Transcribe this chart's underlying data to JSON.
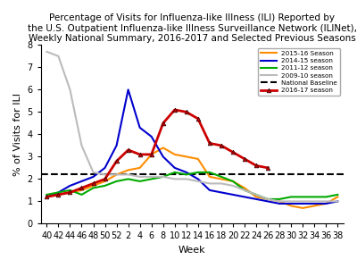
{
  "title_lines": [
    "Percentage of Visits for Influenza-like Illness (ILI) Reported by",
    "the U.S. Outpatient Influenza-like Illness Surveillance Network (ILINet),",
    "Weekly National Summary, 2016-2017 and Selected Previous Seasons"
  ],
  "xlabel": "Week",
  "ylabel": "% of Visits for ILI",
  "ylim": [
    0,
    8
  ],
  "baseline": 2.2,
  "x_tick_labels": [
    "40",
    "42",
    "44",
    "46",
    "48",
    "50",
    "52",
    "2",
    "4",
    "6",
    "8",
    "10",
    "12",
    "14",
    "16",
    "18",
    "20",
    "22",
    "24",
    "26",
    "28",
    "30",
    "32",
    "34",
    "36",
    "38"
  ],
  "legend_entries": [
    "2015-16 Season",
    "2014-15 season",
    "2011-12 season",
    "2009-10 season",
    "National Baseline",
    "2016-17 season"
  ],
  "seasons": {
    "2015_16": {
      "color": "#FF8C00",
      "lw": 1.5,
      "marker": null,
      "values": [
        1.2,
        1.3,
        1.4,
        1.5,
        1.7,
        1.9,
        2.2,
        2.4,
        2.5,
        3.1,
        3.4,
        3.1,
        3.0,
        2.9,
        2.1,
        2.0,
        1.9,
        1.6,
        1.2,
        1.1,
        1.0,
        0.8,
        0.7,
        0.8,
        0.9,
        1.2
      ]
    },
    "2014_15": {
      "color": "#0000CD",
      "lw": 1.5,
      "marker": null,
      "values": [
        1.2,
        1.4,
        1.7,
        1.9,
        2.1,
        2.5,
        3.5,
        6.0,
        4.3,
        3.9,
        3.0,
        2.5,
        2.3,
        2.0,
        1.5,
        1.4,
        1.3,
        1.2,
        1.1,
        1.0,
        0.9,
        0.9,
        0.9,
        0.9,
        0.9,
        1.0
      ]
    },
    "2011_12": {
      "color": "#00AA00",
      "lw": 1.5,
      "marker": null,
      "values": [
        1.3,
        1.4,
        1.5,
        1.3,
        1.6,
        1.7,
        1.9,
        2.0,
        1.9,
        2.0,
        2.1,
        2.3,
        2.2,
        2.3,
        2.3,
        2.1,
        1.9,
        1.5,
        1.3,
        1.1,
        1.1,
        1.2,
        1.2,
        1.2,
        1.2,
        1.3
      ]
    },
    "2009_10": {
      "color": "#BBBBBB",
      "lw": 1.5,
      "marker": null,
      "values": [
        7.7,
        7.5,
        6.0,
        3.5,
        2.3,
        2.2,
        2.2,
        2.2,
        2.1,
        2.1,
        2.1,
        2.0,
        2.0,
        1.9,
        1.8,
        1.8,
        1.7,
        1.5,
        1.3,
        1.1,
        1.0,
        1.0,
        1.0,
        1.0,
        1.0,
        1.0
      ]
    },
    "2016_17": {
      "color": "#CC0000",
      "lw": 2.0,
      "marker": "^",
      "values": [
        1.2,
        1.3,
        1.4,
        1.6,
        1.8,
        2.0,
        2.8,
        3.3,
        3.1,
        3.1,
        4.5,
        5.1,
        5.0,
        4.7,
        3.6,
        3.5,
        3.2,
        2.9,
        2.6,
        2.5,
        null,
        null,
        null,
        null,
        null,
        null
      ]
    }
  },
  "background_color": "#FFFFFF",
  "title_fontsize": 7.5,
  "axis_fontsize": 8,
  "tick_fontsize": 7
}
